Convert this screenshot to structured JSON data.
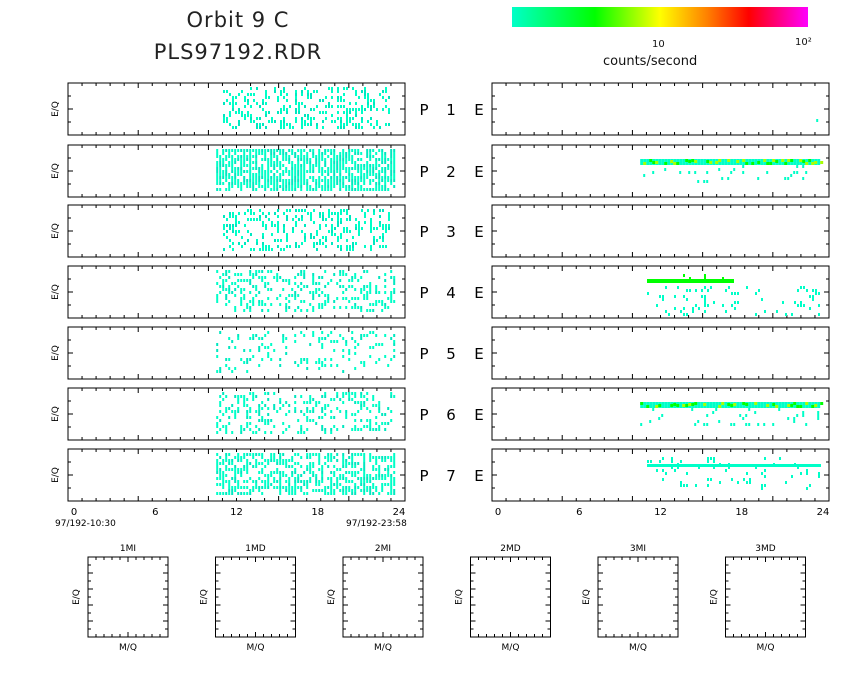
{
  "header": {
    "title_line1": "Orbit 9 C",
    "title_line2": "PLS97192.RDR"
  },
  "colorbar": {
    "label": "counts/second",
    "tick_10": "10",
    "tick_100": "10²",
    "colors": [
      "#00ffc8",
      "#00ff00",
      "#ffff00",
      "#ff8000",
      "#ff0000",
      "#ff00ff"
    ]
  },
  "panel_axis_label": "E/Q",
  "row_labels": [
    {
      "p": "P",
      "n": "1",
      "e": "E"
    },
    {
      "p": "P",
      "n": "2",
      "e": "E"
    },
    {
      "p": "P",
      "n": "3",
      "e": "E"
    },
    {
      "p": "P",
      "n": "4",
      "e": "E"
    },
    {
      "p": "P",
      "n": "5",
      "e": "E"
    },
    {
      "p": "P",
      "n": "6",
      "e": "E"
    },
    {
      "p": "P",
      "n": "7",
      "e": "E"
    }
  ],
  "time_axis": {
    "ticks": [
      "0",
      "6",
      "12",
      "18",
      "24"
    ],
    "start_label": "97/192-10:30",
    "end_label": "97/192-23:58"
  },
  "chart_data": {
    "type": "heatmap",
    "title": "Orbit 9 C PLS97192.RDR",
    "xlabel": "",
    "ylabel": "E/Q",
    "xlim": [
      0,
      24
    ],
    "colorbar_label": "counts/second",
    "colorbar_range_log10": [
      0,
      2
    ],
    "left_column": {
      "rows": [
        "P 1",
        "P 2",
        "P 3",
        "P 4",
        "P 5",
        "P 6",
        "P 7"
      ],
      "activity_hours": [
        [
          11,
          23.5
        ],
        [
          10.5,
          24
        ],
        [
          11,
          23.5
        ],
        [
          10.5,
          24
        ],
        [
          10.5,
          24
        ],
        [
          10.5,
          24
        ],
        [
          10.5,
          24
        ]
      ],
      "relative_density": [
        0.35,
        0.75,
        0.3,
        0.3,
        0.15,
        0.3,
        0.55
      ],
      "dominant_level": "low (cyan)"
    },
    "right_column": {
      "rows": [
        "P 1 E",
        "P 2 E",
        "P 3 E",
        "P 4 E",
        "P 5 E",
        "P 6 E",
        "P 7 E"
      ],
      "activity_hours": [
        [
          23.5,
          23.6
        ],
        [
          10.5,
          24
        ],
        null,
        [
          11,
          24
        ],
        null,
        [
          10.5,
          24
        ],
        [
          11,
          24
        ]
      ],
      "band_position": [
        null,
        "upper",
        null,
        "upper+scattered",
        null,
        "upper",
        "middle"
      ],
      "dominant_level": [
        "",
        "~10 (green-yellow)",
        "",
        "low-mid (cyan-green)",
        "",
        "~10 (green-yellow)",
        "low (cyan)"
      ]
    },
    "bottom_panels": [
      {
        "title": "1MI",
        "xlabel": "M/Q",
        "ylabel": "E/Q"
      },
      {
        "title": "1MD",
        "xlabel": "M/Q",
        "ylabel": "E/Q"
      },
      {
        "title": "2MI",
        "xlabel": "M/Q",
        "ylabel": "E/Q"
      },
      {
        "title": "2MD",
        "xlabel": "M/Q",
        "ylabel": "E/Q"
      },
      {
        "title": "3MI",
        "xlabel": "M/Q",
        "ylabel": "E/Q"
      },
      {
        "title": "3MD",
        "xlabel": "M/Q",
        "ylabel": "E/Q"
      }
    ]
  }
}
